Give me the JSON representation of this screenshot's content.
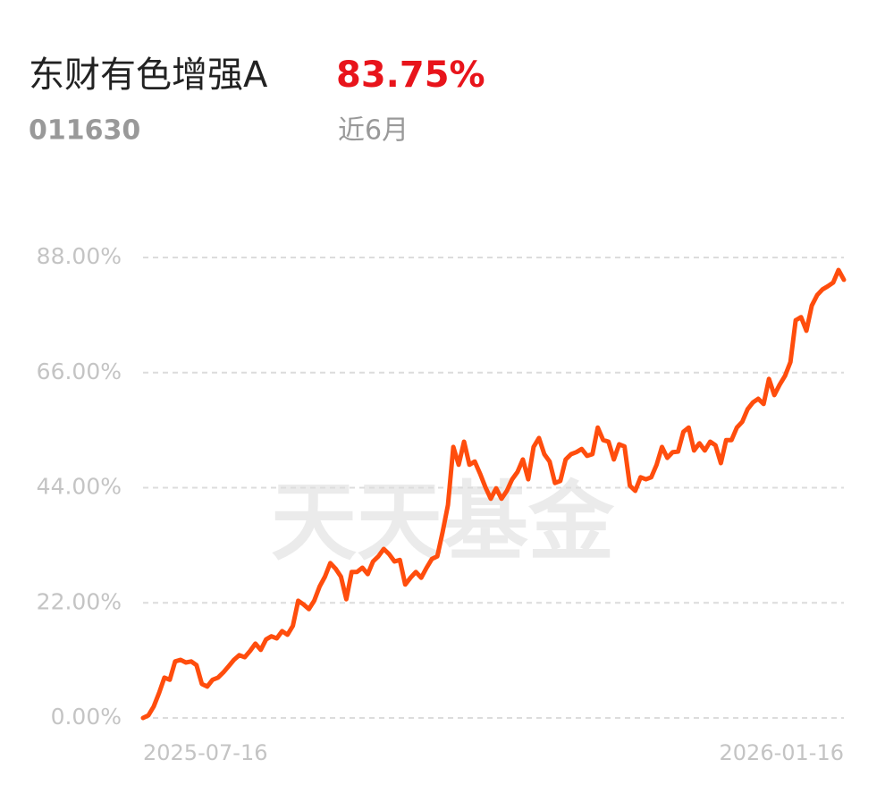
{
  "header": {
    "name": "东财有色增强A",
    "return": "83.75%",
    "code": "011630",
    "period": "近6月"
  },
  "watermark": "天天基金",
  "chart_data": {
    "type": "line",
    "color": "#ff4d0d",
    "grid": true,
    "categories": [
      "2025-07-16",
      null,
      null,
      null,
      null,
      null,
      null,
      null,
      null,
      null,
      null,
      null,
      null,
      null,
      null,
      null,
      null,
      null,
      null,
      null,
      null,
      null,
      null,
      null,
      null,
      null,
      null,
      null,
      null,
      null,
      null,
      null,
      null,
      null,
      null,
      null,
      null,
      null,
      null,
      null,
      null,
      null,
      null,
      null,
      null,
      null,
      null,
      null,
      null,
      null,
      null,
      null,
      null,
      null,
      null,
      null,
      null,
      null,
      null,
      null,
      null,
      null,
      null,
      null,
      null,
      null,
      null,
      null,
      null,
      null,
      null,
      null,
      null,
      null,
      null,
      null,
      null,
      null,
      null,
      null,
      null,
      null,
      null,
      null,
      null,
      null,
      null,
      null,
      null,
      null,
      null,
      null,
      null,
      null,
      null,
      null,
      null,
      null,
      null,
      null,
      null,
      null,
      null,
      null,
      null,
      null,
      null,
      null,
      null,
      null,
      null,
      null,
      null,
      null,
      null,
      null,
      null,
      null,
      null,
      null,
      null,
      null,
      null,
      null,
      null,
      null,
      null,
      null,
      null,
      null,
      null,
      "2026-01-16"
    ],
    "values": [
      0,
      0.5,
      2.2,
      4.8,
      7.7,
      7.3,
      10.8,
      11.1,
      10.6,
      10.8,
      10.1,
      6.5,
      6.0,
      7.3,
      7.7,
      8.7,
      9.9,
      11.1,
      12.0,
      11.6,
      12.8,
      14.2,
      13.0,
      15.0,
      15.6,
      15.2,
      16.6,
      15.9,
      17.6,
      22.4,
      21.7,
      20.8,
      22.4,
      25.1,
      27.0,
      29.6,
      28.5,
      27.0,
      22.7,
      27.9,
      27.9,
      28.7,
      27.5,
      29.9,
      30.9,
      32.3,
      31.3,
      29.9,
      30.2,
      25.5,
      26.8,
      27.9,
      26.8,
      28.7,
      30.4,
      30.9,
      35.5,
      40.7,
      51.8,
      48.4,
      52.8,
      48.4,
      49.0,
      46.7,
      44.1,
      41.9,
      43.9,
      41.9,
      43.4,
      45.6,
      47.0,
      49.4,
      45.6,
      51.8,
      53.5,
      50.4,
      49.0,
      44.9,
      45.3,
      49.4,
      50.4,
      50.8,
      51.4,
      50.1,
      50.4,
      55.5,
      53.1,
      52.8,
      49.4,
      52.3,
      51.9,
      44.4,
      43.4,
      46.0,
      45.6,
      46.0,
      48.4,
      51.8,
      49.7,
      50.8,
      50.9,
      54.7,
      55.5,
      51.1,
      52.5,
      51.1,
      52.8,
      52.1,
      48.7,
      53.1,
      53.1,
      55.5,
      56.6,
      59.0,
      60.3,
      61.0,
      60.0,
      64.8,
      61.7,
      63.7,
      65.4,
      68.0,
      76.0,
      76.6,
      74.0,
      78.8,
      80.8,
      81.9,
      82.5,
      83.2,
      85.6,
      83.75
    ],
    "ylim": [
      0,
      88
    ],
    "yticks": [
      {
        "value": 0,
        "label": "0.00%"
      },
      {
        "value": 22,
        "label": "22.00%"
      },
      {
        "value": 44,
        "label": "44.00%"
      },
      {
        "value": 66,
        "label": "66.00%"
      },
      {
        "value": 88,
        "label": "88.00%"
      }
    ]
  }
}
